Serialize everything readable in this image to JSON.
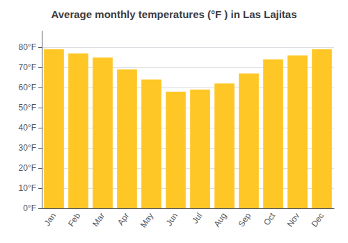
{
  "chart_data": {
    "type": "bar",
    "title": "Average monthly temperatures (°F ) in Las Lajitas",
    "categories": [
      "Jan",
      "Feb",
      "Mar",
      "Apr",
      "May",
      "Jun",
      "Jul",
      "Aug",
      "Sep",
      "Oct",
      "Nov",
      "Dec"
    ],
    "values": [
      79,
      77,
      75,
      69,
      64,
      58,
      59,
      62,
      67,
      74,
      76,
      79
    ],
    "color": "#FFC726",
    "ylim": [
      0,
      88
    ],
    "yticks": [
      {
        "value": 0,
        "label": "0°F"
      },
      {
        "value": 10,
        "label": "10°F"
      },
      {
        "value": 20,
        "label": "20°F"
      },
      {
        "value": 30,
        "label": "30°F"
      },
      {
        "value": 40,
        "label": "40°F"
      },
      {
        "value": 50,
        "label": "50°F"
      },
      {
        "value": 60,
        "label": "60°F"
      },
      {
        "value": 70,
        "label": "70°F"
      },
      {
        "value": 80,
        "label": "80°F"
      }
    ],
    "grid": true
  }
}
